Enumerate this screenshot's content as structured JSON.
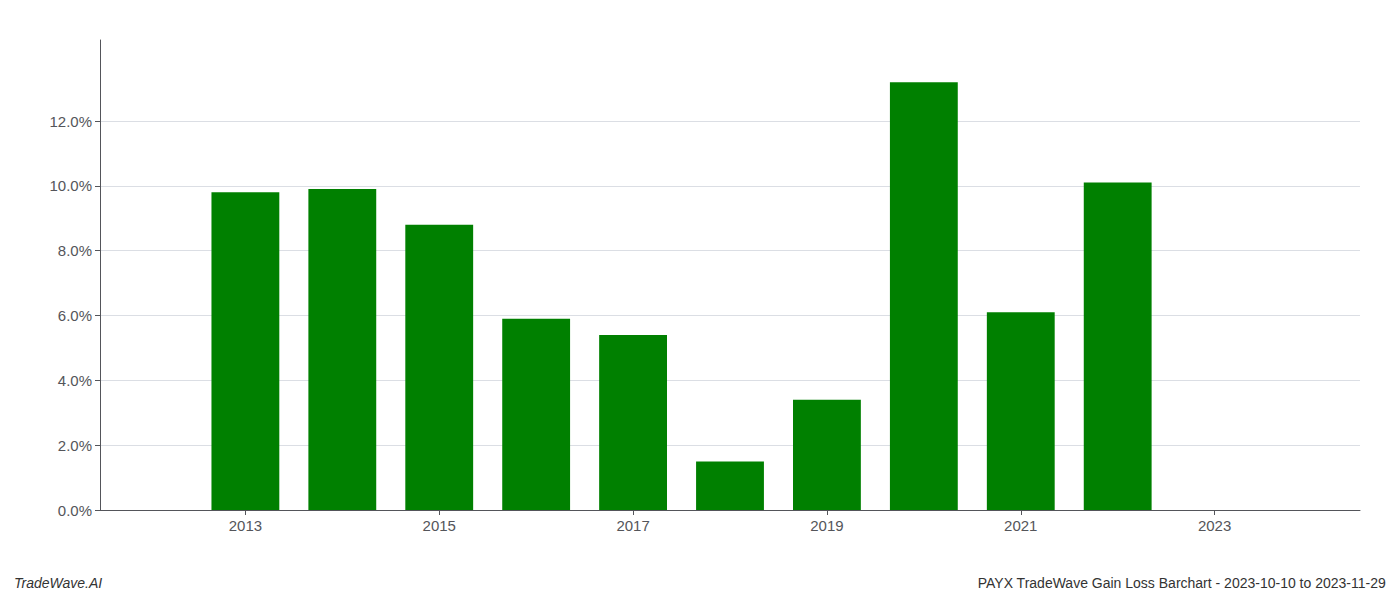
{
  "chart_data": {
    "type": "bar",
    "title": "PAYX TradeWave Gain Loss Barchart - 2023-10-10 to 2023-11-29",
    "annotations": [
      "TradeWave.AI"
    ],
    "x": [
      2013,
      2014,
      2015,
      2016,
      2017,
      2018,
      2019,
      2020,
      2021,
      2022
    ],
    "values": [
      0.098,
      0.099,
      0.088,
      0.059,
      0.054,
      0.015,
      0.034,
      0.132,
      0.061,
      0.101
    ],
    "color": "#008000",
    "xlim": [
      2011.5,
      2024.5
    ],
    "xticks": [
      2013,
      2015,
      2017,
      2019,
      2021,
      2023
    ],
    "ylim": [
      0,
      0.145
    ],
    "yticks": [
      {
        "value": 0.0,
        "label": "0.0%"
      },
      {
        "value": 0.02,
        "label": "2.0%"
      },
      {
        "value": 0.04,
        "label": "4.0%"
      },
      {
        "value": 0.06,
        "label": "6.0%"
      },
      {
        "value": 0.08,
        "label": "8.0%"
      },
      {
        "value": 0.1,
        "label": "10.0%"
      },
      {
        "value": 0.12,
        "label": "12.0%"
      }
    ],
    "grid": true
  }
}
